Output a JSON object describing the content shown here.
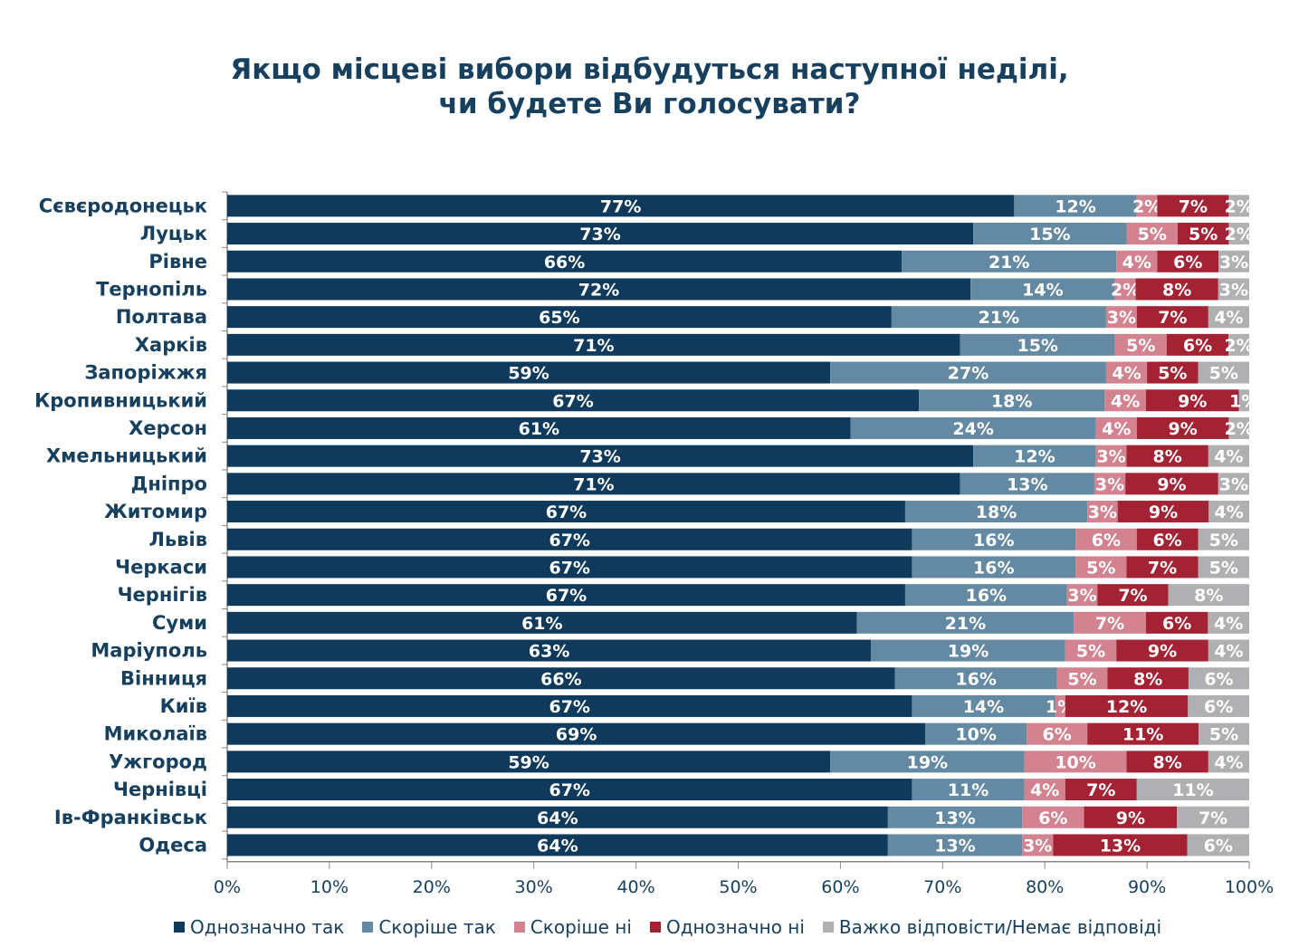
{
  "chart_data": {
    "type": "bar",
    "orientation": "horizontal",
    "stacked": true,
    "title": "Якщо місцеві вибори відбудуться наступної неділі, чи будете Ви голосувати?",
    "title_lines": [
      "Якщо місцеві вибори відбудуться наступної неділі,",
      "чи будете Ви голосувати?"
    ],
    "xlabel": "",
    "ylabel": "",
    "xlim": [
      0,
      100
    ],
    "x_ticks": [
      "0%",
      "10%",
      "20%",
      "30%",
      "40%",
      "50%",
      "60%",
      "70%",
      "80%",
      "90%",
      "100%"
    ],
    "grid": false,
    "legend_position": "bottom",
    "categories": [
      "Сєвєродонецьк",
      "Луцьк",
      "Рівне",
      "Тернопіль",
      "Полтава",
      "Харків",
      "Запоріжжя",
      "Кропивницький",
      "Херсон",
      "Хмельницький",
      "Дніпро",
      "Житомир",
      "Львів",
      "Черкаси",
      "Чернігів",
      "Суми",
      "Маріуполь",
      "Вінниця",
      "Київ",
      "Миколаїв",
      "Ужгород",
      "Чернівці",
      "Ів-Франківськ",
      "Одеса"
    ],
    "series": [
      {
        "name": "Однозначно так",
        "color": "#0f3a5c",
        "values": [
          77,
          73,
          66,
          72,
          65,
          71,
          59,
          67,
          61,
          73,
          71,
          67,
          67,
          67,
          67,
          61,
          63,
          66,
          67,
          69,
          59,
          67,
          64,
          64
        ]
      },
      {
        "name": "Скоріше так",
        "color": "#648aa3",
        "values": [
          12,
          15,
          21,
          14,
          21,
          15,
          27,
          18,
          24,
          12,
          13,
          18,
          16,
          16,
          16,
          21,
          19,
          16,
          14,
          10,
          19,
          11,
          13,
          13
        ]
      },
      {
        "name": "Скоріше ні",
        "color": "#d3838f",
        "values": [
          2,
          5,
          4,
          2,
          3,
          5,
          4,
          4,
          4,
          3,
          3,
          3,
          6,
          5,
          3,
          7,
          5,
          5,
          1,
          6,
          10,
          4,
          6,
          3
        ]
      },
      {
        "name": "Однозначно ні",
        "color": "#a32233",
        "values": [
          7,
          5,
          6,
          8,
          7,
          6,
          5,
          9,
          9,
          8,
          9,
          9,
          6,
          7,
          7,
          6,
          9,
          8,
          12,
          11,
          8,
          7,
          9,
          13
        ]
      },
      {
        "name": "Важко відповісти/Немає відповіді",
        "color": "#b0b0b2",
        "values": [
          2,
          2,
          3,
          3,
          4,
          2,
          5,
          1,
          2,
          4,
          3,
          4,
          5,
          5,
          8,
          4,
          4,
          6,
          6,
          5,
          4,
          11,
          7,
          6
        ]
      }
    ],
    "data_labels": true,
    "data_label_format": "{v}%"
  }
}
